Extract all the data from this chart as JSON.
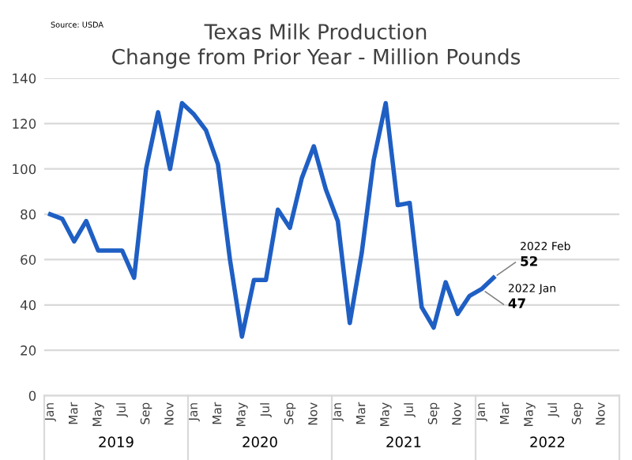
{
  "chart_data": {
    "type": "line",
    "title": "Texas Milk Production\nChange from Prior Year - Million Pounds",
    "categories": [
      "Jan",
      null,
      "Mar",
      null,
      "May",
      null,
      "Jul",
      null,
      "Sep",
      null,
      "Nov",
      null,
      "Jan",
      null,
      "Mar",
      null,
      "May",
      null,
      "Jul",
      null,
      "Sep",
      null,
      "Nov",
      null,
      "Jan",
      null,
      "Mar",
      null,
      "May",
      null,
      "Jul",
      null,
      "Sep",
      null,
      "Nov",
      null,
      "Jan",
      null,
      "Mar",
      null,
      "May",
      null,
      "Jul",
      null,
      "Sep",
      null,
      "Nov",
      null
    ],
    "series": [
      {
        "color": "#1f5fc4",
        "values": [
          80,
          78,
          68,
          77,
          64,
          64,
          64,
          52,
          100,
          125,
          100,
          129,
          124,
          117,
          102,
          60,
          26,
          51,
          51,
          82,
          74,
          96,
          110,
          91,
          77,
          32,
          63,
          104,
          129,
          84,
          85,
          39,
          30,
          50,
          36,
          44,
          47,
          52,
          null,
          null,
          null,
          null,
          null,
          null,
          null,
          null,
          null,
          null
        ],
        "value_labels": [
          null,
          null,
          null,
          null,
          null,
          null,
          null,
          null,
          null,
          null,
          null,
          null,
          null,
          null,
          null,
          null,
          null,
          null,
          null,
          null,
          null,
          null,
          null,
          null,
          null,
          null,
          null,
          null,
          null,
          null,
          null,
          null,
          null,
          null,
          null,
          null,
          "47",
          "52",
          null,
          null,
          null,
          null,
          null,
          null,
          null,
          null,
          null,
          null
        ]
      }
    ],
    "annotations": [
      "Source: USDA",
      "2019",
      "2020",
      "2021",
      "2022",
      "2022 Jan",
      "2022 Feb"
    ],
    "ylim": [
      0,
      140
    ],
    "yticks": [
      0,
      20,
      40,
      60,
      80,
      100,
      120,
      140
    ],
    "grid": "y",
    "legend": false,
    "marker": "none",
    "line_style": "solid"
  }
}
